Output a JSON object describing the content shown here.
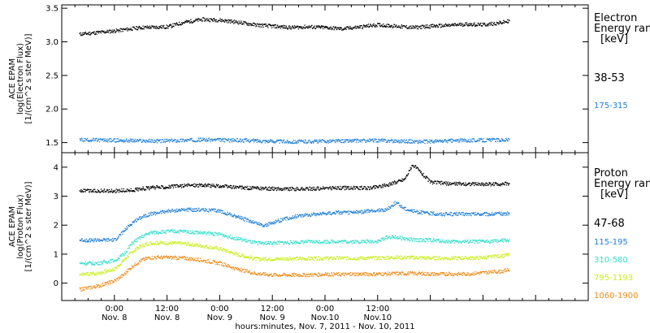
{
  "colors": {
    "black": "#000000",
    "blue": "#1f7fd6",
    "cyan": "#33e0cc",
    "yellow": "#c8ef1a",
    "orange": "#f08c1a"
  },
  "chart_data": [
    {
      "type": "scatter",
      "panel": "electron",
      "ylabel_lines": [
        "ACE EPAM",
        "log(Electron Flux)",
        "[1/(cm^2 s ster MeV)]"
      ],
      "ylim": [
        1.35,
        3.55
      ],
      "yticks": [
        1.5,
        2.0,
        2.5,
        3.0,
        3.5
      ],
      "yticklabels": [
        "1.5",
        "2.0",
        "2.5",
        "3.0",
        "3.5"
      ],
      "legend_title_lines": [
        "Electron",
        "Energy ranges",
        "[keV]"
      ],
      "series": [
        {
          "name": "38-53",
          "color": "black",
          "x": [
            -8,
            0,
            6,
            12,
            16,
            20,
            24,
            28,
            32,
            36,
            40,
            44,
            48,
            52,
            56,
            60,
            64,
            68,
            72,
            76,
            80,
            84,
            88,
            90
          ],
          "y": [
            3.12,
            3.17,
            3.22,
            3.23,
            3.3,
            3.34,
            3.33,
            3.3,
            3.26,
            3.24,
            3.22,
            3.23,
            3.22,
            3.2,
            3.23,
            3.26,
            3.24,
            3.22,
            3.24,
            3.25,
            3.27,
            3.26,
            3.29,
            3.32
          ]
        },
        {
          "name": "175-315",
          "color": "blue",
          "x": [
            -8,
            0,
            10,
            20,
            30,
            40,
            50,
            60,
            70,
            80,
            90
          ],
          "y": [
            1.55,
            1.54,
            1.53,
            1.55,
            1.54,
            1.52,
            1.53,
            1.54,
            1.52,
            1.54,
            1.55
          ]
        }
      ]
    },
    {
      "type": "scatter",
      "panel": "proton",
      "ylabel_lines": [
        "ACE EPAM",
        "log(Proton Flux)",
        "[1/(cm^2 s ster MeV)]"
      ],
      "ylim": [
        -0.6,
        4.5
      ],
      "yticks": [
        0,
        1,
        2,
        3,
        4
      ],
      "yticklabels": [
        "0",
        "1",
        "2",
        "3",
        "4"
      ],
      "legend_title_lines": [
        "Proton",
        "Energy ranges",
        "[keV]"
      ],
      "series": [
        {
          "name": "47-68",
          "color": "black",
          "x": [
            -8,
            0,
            4,
            6,
            10,
            14,
            18,
            22,
            26,
            30,
            34,
            38,
            42,
            46,
            50,
            54,
            58,
            62,
            66,
            68,
            70,
            72,
            76,
            80,
            84,
            88,
            90
          ],
          "y": [
            3.2,
            3.2,
            3.22,
            3.28,
            3.32,
            3.36,
            3.4,
            3.38,
            3.34,
            3.3,
            3.28,
            3.27,
            3.26,
            3.28,
            3.3,
            3.3,
            3.3,
            3.4,
            3.6,
            4.1,
            3.8,
            3.5,
            3.45,
            3.44,
            3.43,
            3.44,
            3.45
          ]
        },
        {
          "name": "115-195",
          "color": "blue",
          "x": [
            -8,
            0,
            2,
            4,
            6,
            8,
            12,
            16,
            20,
            24,
            28,
            32,
            34,
            38,
            42,
            46,
            50,
            54,
            58,
            62,
            64,
            66,
            68,
            70,
            74,
            78,
            82,
            86,
            90
          ],
          "y": [
            1.5,
            1.5,
            1.8,
            2.1,
            2.3,
            2.4,
            2.5,
            2.55,
            2.55,
            2.5,
            2.3,
            2.1,
            2.0,
            2.2,
            2.35,
            2.4,
            2.45,
            2.45,
            2.5,
            2.55,
            2.8,
            2.6,
            2.5,
            2.45,
            2.4,
            2.4,
            2.4,
            2.4,
            2.42
          ]
        },
        {
          "name": "310-580",
          "color": "cyan",
          "x": [
            -8,
            -4,
            0,
            2,
            4,
            6,
            8,
            12,
            16,
            20,
            24,
            28,
            32,
            36,
            40,
            44,
            48,
            52,
            56,
            60,
            62,
            64,
            66,
            68,
            72,
            76,
            80,
            84,
            88,
            90
          ],
          "y": [
            0.7,
            0.7,
            0.8,
            1.0,
            1.4,
            1.6,
            1.75,
            1.8,
            1.8,
            1.75,
            1.7,
            1.55,
            1.4,
            1.4,
            1.42,
            1.44,
            1.45,
            1.45,
            1.45,
            1.46,
            1.6,
            1.6,
            1.55,
            1.5,
            1.5,
            1.45,
            1.45,
            1.45,
            1.48,
            1.5
          ]
        },
        {
          "name": "795-1193",
          "color": "yellow",
          "x": [
            -8,
            -4,
            0,
            2,
            4,
            6,
            8,
            12,
            16,
            20,
            24,
            28,
            32,
            36,
            40,
            44,
            48,
            52,
            56,
            60,
            64,
            68,
            72,
            76,
            80,
            84,
            88,
            90
          ],
          "y": [
            0.3,
            0.35,
            0.5,
            0.8,
            1.1,
            1.3,
            1.4,
            1.4,
            1.38,
            1.3,
            1.2,
            1.0,
            0.85,
            0.85,
            0.86,
            0.86,
            0.87,
            0.88,
            0.88,
            0.88,
            0.9,
            0.9,
            0.88,
            0.88,
            0.88,
            0.9,
            0.95,
            1.0
          ]
        },
        {
          "name": "1060-1900",
          "color": "orange",
          "x": [
            -8,
            -4,
            0,
            2,
            4,
            6,
            8,
            12,
            16,
            20,
            24,
            28,
            32,
            36,
            40,
            44,
            48,
            52,
            56,
            60,
            64,
            68,
            72,
            76,
            80,
            84,
            88,
            90
          ],
          "y": [
            -0.2,
            -0.1,
            0.1,
            0.3,
            0.6,
            0.8,
            0.9,
            0.9,
            0.88,
            0.8,
            0.7,
            0.5,
            0.35,
            0.3,
            0.3,
            0.3,
            0.32,
            0.32,
            0.33,
            0.33,
            0.35,
            0.35,
            0.33,
            0.33,
            0.33,
            0.38,
            0.42,
            0.48
          ]
        }
      ]
    }
  ],
  "x_axis": {
    "unit": "hours since Nov. 8 0:00",
    "xlim": [
      -12,
      108
    ],
    "ticks": [
      {
        "x": 0,
        "time": "0:00",
        "day": "Nov. 8"
      },
      {
        "x": 12,
        "time": "12:00",
        "day": "Nov. 8"
      },
      {
        "x": 24,
        "time": "0:00",
        "day": "Nov. 9"
      },
      {
        "x": 36,
        "time": "12:00",
        "day": "Nov. 9"
      },
      {
        "x": 48,
        "time": "0:00",
        "day": "Nov.10"
      },
      {
        "x": 60,
        "time": "12:00",
        "day": "Nov.10"
      }
    ],
    "label": "hours:minutes, Nov.  7, 2011 - Nov. 10, 2011"
  }
}
